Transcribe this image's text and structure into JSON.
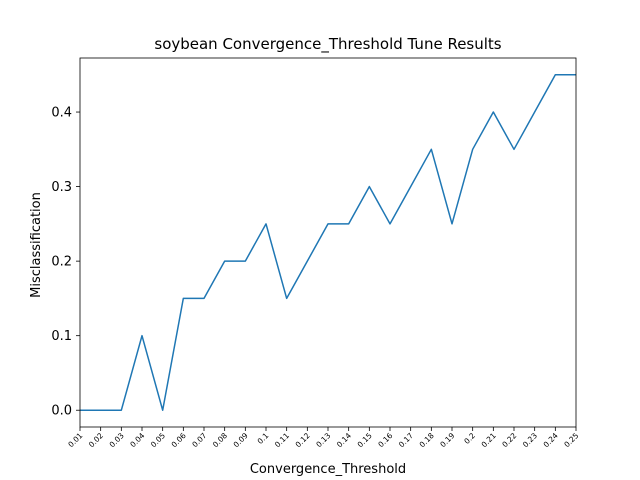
{
  "chart_data": {
    "type": "line",
    "title": "soybean Convergence_Threshold Tune Results",
    "xlabel": "Convergence_Threshold",
    "ylabel": "Misclassification",
    "categories": [
      "0.01",
      "0.02",
      "0.03",
      "0.04",
      "0.05",
      "0.06",
      "0.07",
      "0.08",
      "0.09",
      "0.1",
      "0.11",
      "0.12",
      "0.13",
      "0.14",
      "0.15",
      "0.16",
      "0.17",
      "0.18",
      "0.19",
      "0.2",
      "0.21",
      "0.22",
      "0.23",
      "0.24",
      "0.25"
    ],
    "series": [
      {
        "values": [
          0.0,
          0.0,
          0.0,
          0.1,
          0.0,
          0.15,
          0.15,
          0.2,
          0.2,
          0.25,
          0.15,
          0.2,
          0.25,
          0.25,
          0.3,
          0.25,
          0.3,
          0.35,
          0.25,
          0.35,
          0.4,
          0.35,
          0.4,
          0.45,
          0.45
        ]
      }
    ],
    "yticks": [
      "0.0",
      "0.1",
      "0.2",
      "0.3",
      "0.4"
    ],
    "ylim": [
      -0.0225,
      0.4725
    ],
    "grid": false,
    "line_color": "#1f77b4"
  }
}
